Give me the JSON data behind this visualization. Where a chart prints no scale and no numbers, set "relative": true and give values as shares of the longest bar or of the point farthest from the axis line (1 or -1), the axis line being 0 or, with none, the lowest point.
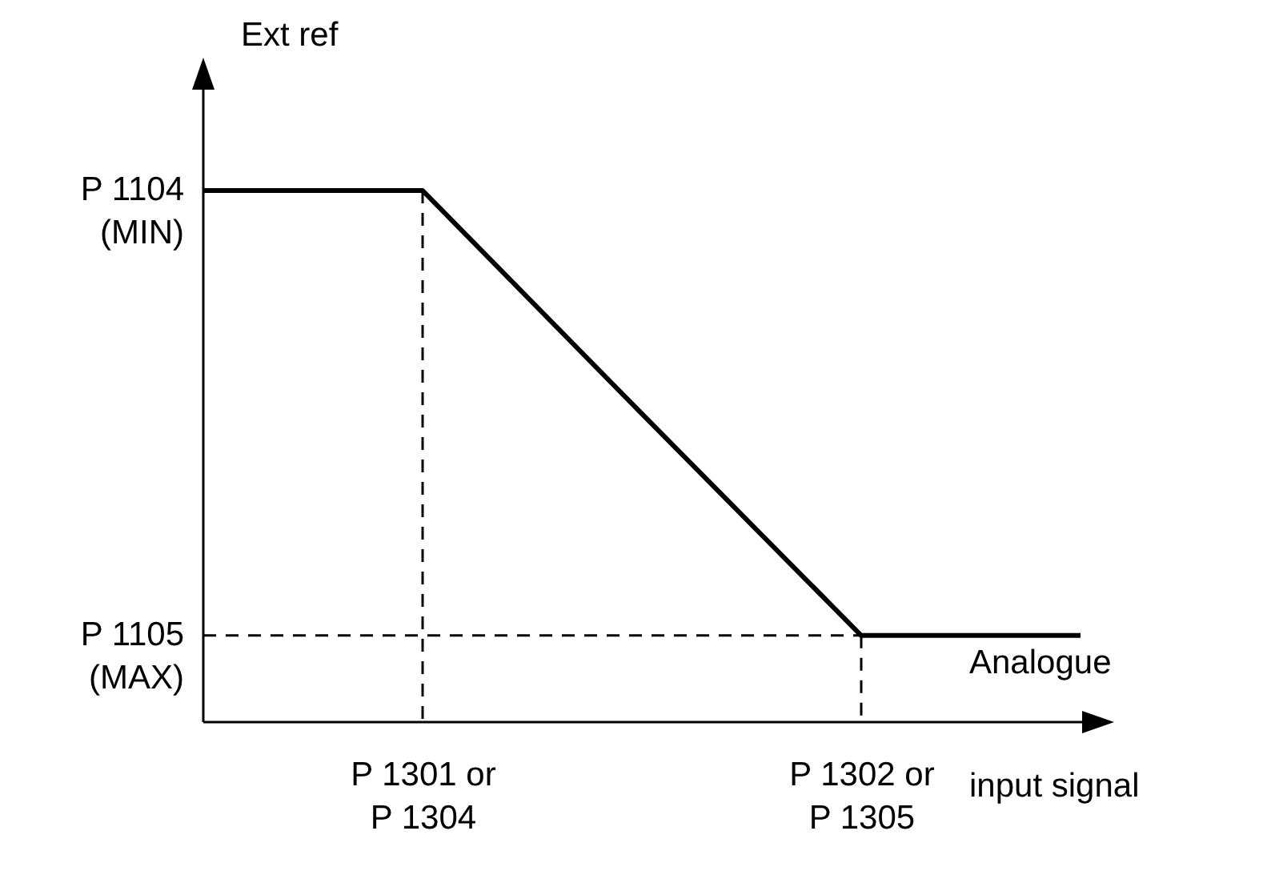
{
  "chart_data": {
    "type": "line",
    "relative": true,
    "ylabel": "Ext ref",
    "xlabel": "Analogue\ninput signal",
    "categories": [
      null,
      "P 1301 or\nP 1304",
      null,
      "P 1302 or\nP 1305",
      null
    ],
    "series": [
      {
        "values": [
          1,
          1,
          0.58,
          0.163,
          0.163
        ],
        "color": "#000000",
        "line_style": "solid"
      },
      {
        "values": [
          0.163,
          0.163,
          0.163,
          0.163,
          null
        ],
        "color": "#000000",
        "line_style": "dashed"
      },
      {
        "x": [
          "P 1301 or\nP 1304",
          "P 1301 or\nP 1304"
        ],
        "values": [
          1,
          0
        ],
        "color": "#000000",
        "line_style": "dashed"
      },
      {
        "x": [
          "P 1302 or\nP 1305",
          "P 1302 or\nP 1305"
        ],
        "values": [
          0.163,
          0
        ],
        "color": "#000000",
        "line_style": "dashed"
      }
    ],
    "annotations": [
      "P 1104\n(MIN)",
      "P 1105\n(MAX)"
    ],
    "marker": "none"
  }
}
